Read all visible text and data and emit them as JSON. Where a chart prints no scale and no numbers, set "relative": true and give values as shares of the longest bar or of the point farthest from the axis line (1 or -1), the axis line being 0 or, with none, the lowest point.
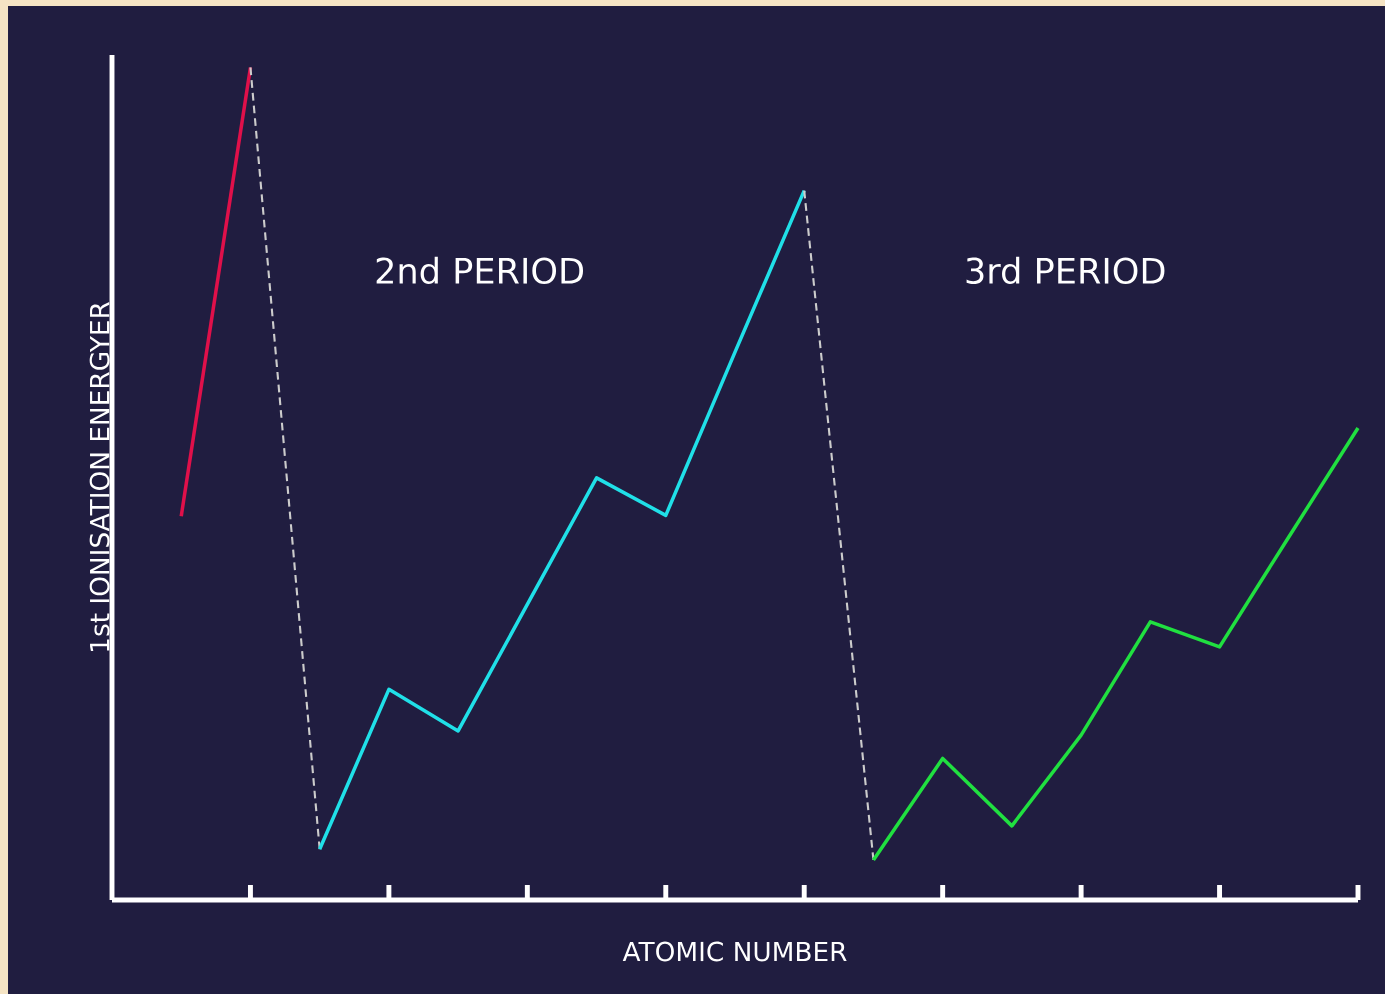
{
  "chart_data": {
    "type": "line",
    "relative": true,
    "xlabel": "ATOMIC NUMBER",
    "ylabel": "1st IONISATION ENERGYER",
    "categories": [
      null,
      null,
      null,
      null,
      null,
      null,
      null,
      null,
      null,
      null,
      null,
      null,
      null,
      null,
      null,
      null,
      null,
      null
    ],
    "annotations": [
      "2nd PERIOD",
      "3rd PERIOD"
    ],
    "series": [
      {
        "color": "#e0104a",
        "values": [
          0.461,
          1,
          null,
          null,
          null,
          null,
          null,
          null,
          null,
          null,
          null,
          null,
          null,
          null,
          null,
          null,
          null,
          null
        ]
      },
      {
        "color": "#cccccc",
        "line_style": "dashed",
        "values": [
          null,
          1,
          0.061,
          null,
          null,
          null,
          null,
          null,
          null,
          null,
          null,
          null,
          null,
          null,
          null,
          null,
          null,
          null
        ]
      },
      {
        "color": "#20e0e8",
        "values": [
          null,
          null,
          0.061,
          0.253,
          0.203,
          0.355,
          0.507,
          0.462,
          0.658,
          0.852,
          null,
          null,
          null,
          null,
          null,
          null,
          null,
          null
        ]
      },
      {
        "color": "#cccccc",
        "line_style": "dashed",
        "values": [
          null,
          null,
          null,
          null,
          null,
          null,
          null,
          null,
          null,
          0.852,
          0.048,
          null,
          null,
          null,
          null,
          null,
          null,
          null
        ]
      },
      {
        "color": "#20e040",
        "values": [
          null,
          null,
          null,
          null,
          null,
          null,
          null,
          null,
          null,
          null,
          0.048,
          0.17,
          0.089,
          0.198,
          0.334,
          0.304,
          0.436,
          0.567
        ]
      }
    ]
  }
}
